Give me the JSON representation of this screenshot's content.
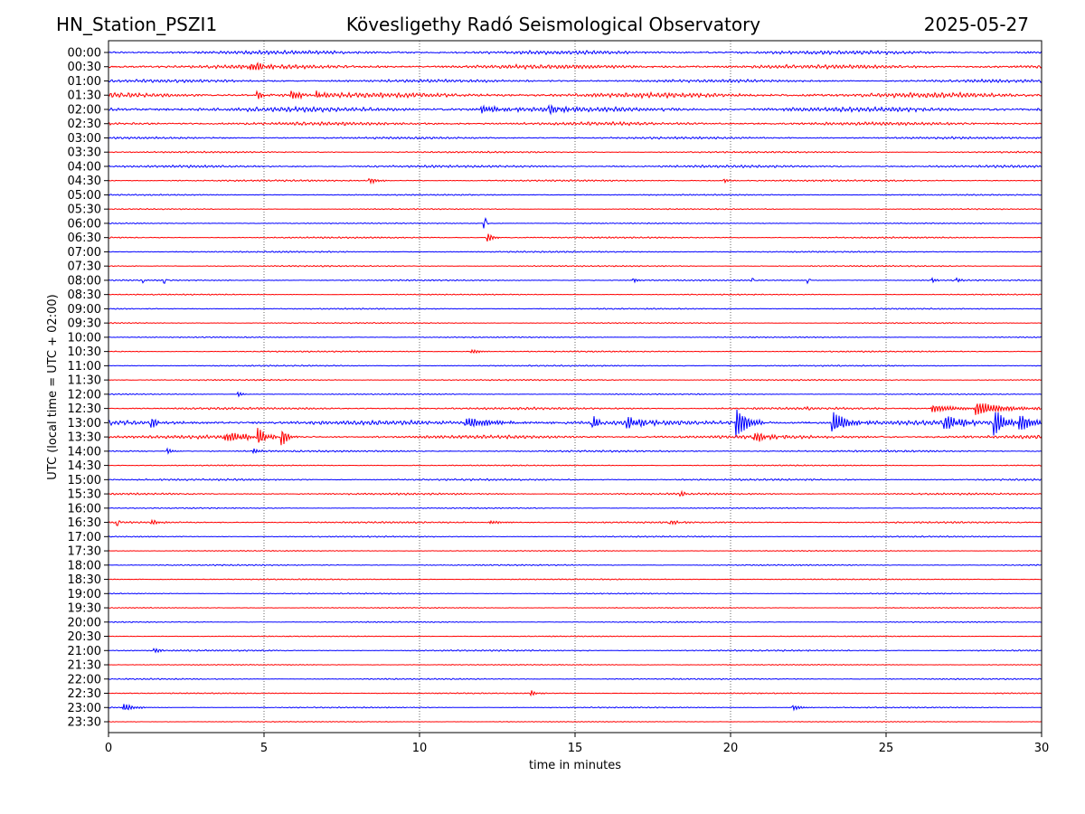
{
  "chart_data": {
    "type": "line",
    "title_left": "HN_Station_PSZI1",
    "title": "Kövesligethy Radó Seismological Observatory",
    "title_right": "2025-05-27",
    "xlabel": "time in minutes",
    "ylabel": "UTC (local time = UTC + 02:00)",
    "xlim": [
      0,
      30
    ],
    "xticks": [
      0,
      5,
      10,
      15,
      20,
      25,
      30
    ],
    "grid": "vertical dotted at x ticks",
    "colors": [
      "#0000ff",
      "#ff0000"
    ],
    "rows": [
      "00:00",
      "00:30",
      "01:00",
      "01:30",
      "02:00",
      "02:30",
      "03:00",
      "03:30",
      "04:00",
      "04:30",
      "05:00",
      "05:30",
      "06:00",
      "06:30",
      "07:00",
      "07:30",
      "08:00",
      "08:30",
      "09:00",
      "09:30",
      "10:00",
      "10:30",
      "11:00",
      "11:30",
      "12:00",
      "12:30",
      "13:00",
      "13:30",
      "14:00",
      "14:30",
      "15:00",
      "15:30",
      "16:00",
      "16:30",
      "17:00",
      "17:30",
      "18:00",
      "18:30",
      "19:00",
      "19:30",
      "20:00",
      "20:30",
      "21:00",
      "21:30",
      "22:00",
      "22:30",
      "23:00",
      "23:30"
    ],
    "noise_level": [
      2,
      2.2,
      1.6,
      2.6,
      2.6,
      1.8,
      1.2,
      0.9,
      1.3,
      0.9,
      0.7,
      0.6,
      0.6,
      0.8,
      0.8,
      0.7,
      0.7,
      0.6,
      0.7,
      0.6,
      0.6,
      0.7,
      0.7,
      0.7,
      0.6,
      1.2,
      2.4,
      1.8,
      1,
      0.6,
      1,
      1,
      0.6,
      0.9,
      0.7,
      0.5,
      0.7,
      0.6,
      0.6,
      0.5,
      0.6,
      0.5,
      0.8,
      0.5,
      0.7,
      0.6,
      0.6,
      0.4
    ],
    "events": [
      {
        "row": 1,
        "minute": 4.6,
        "amplitude": 5,
        "duration": 0.8
      },
      {
        "row": 3,
        "minute": 4.8,
        "amplitude": 5,
        "duration": 0.3
      },
      {
        "row": 3,
        "minute": 5.9,
        "amplitude": 6,
        "duration": 0.4
      },
      {
        "row": 3,
        "minute": 6.7,
        "amplitude": 5,
        "duration": 0.3
      },
      {
        "row": 4,
        "minute": 12,
        "amplitude": 4,
        "duration": 1.2
      },
      {
        "row": 4,
        "minute": 14.2,
        "amplitude": 4,
        "duration": 0.8
      },
      {
        "row": 9,
        "minute": 8.4,
        "amplitude": 3,
        "duration": 0.5
      },
      {
        "row": 9,
        "minute": 19.8,
        "amplitude": 2,
        "duration": 0.3
      },
      {
        "row": 12,
        "minute": 12.1,
        "amplitude": 8,
        "duration": 0.08
      },
      {
        "row": 13,
        "minute": 12.2,
        "amplitude": 5,
        "duration": 0.3
      },
      {
        "row": 16,
        "minute": 1.1,
        "amplitude": 3,
        "duration": 0.08
      },
      {
        "row": 16,
        "minute": 1.8,
        "amplitude": 3,
        "duration": 0.08
      },
      {
        "row": 16,
        "minute": 16.9,
        "amplitude": 3,
        "duration": 0.15
      },
      {
        "row": 16,
        "minute": 20.7,
        "amplitude": 3,
        "duration": 0.08
      },
      {
        "row": 16,
        "minute": 22.5,
        "amplitude": 3,
        "duration": 0.08
      },
      {
        "row": 16,
        "minute": 26.5,
        "amplitude": 3,
        "duration": 0.15
      },
      {
        "row": 16,
        "minute": 27.3,
        "amplitude": 3,
        "duration": 0.15
      },
      {
        "row": 21,
        "minute": 11.7,
        "amplitude": 2,
        "duration": 0.6
      },
      {
        "row": 24,
        "minute": 4.2,
        "amplitude": 2.5,
        "duration": 0.2
      },
      {
        "row": 25,
        "minute": 22.5,
        "amplitude": 2,
        "duration": 0.08
      },
      {
        "row": 25,
        "minute": 26.5,
        "amplitude": 4,
        "duration": 1.5
      },
      {
        "row": 25,
        "minute": 27.9,
        "amplitude": 8,
        "duration": 1.5
      },
      {
        "row": 26,
        "minute": 1.4,
        "amplitude": 5,
        "duration": 0.4
      },
      {
        "row": 26,
        "minute": 11.5,
        "amplitude": 5,
        "duration": 2
      },
      {
        "row": 26,
        "minute": 15.6,
        "amplitude": 9,
        "duration": 0.2
      },
      {
        "row": 26,
        "minute": 16.7,
        "amplitude": 6,
        "duration": 1
      },
      {
        "row": 26,
        "minute": 20.2,
        "amplitude": 18,
        "duration": 0.6
      },
      {
        "row": 26,
        "minute": 23.3,
        "amplitude": 12,
        "duration": 0.8
      },
      {
        "row": 26,
        "minute": 26.9,
        "amplitude": 8,
        "duration": 1
      },
      {
        "row": 26,
        "minute": 28.5,
        "amplitude": 16,
        "duration": 0.5
      },
      {
        "row": 26,
        "minute": 29.3,
        "amplitude": 10,
        "duration": 0.7
      },
      {
        "row": 27,
        "minute": 3.8,
        "amplitude": 5,
        "duration": 1.5
      },
      {
        "row": 27,
        "minute": 4.8,
        "amplitude": 9,
        "duration": 0.4
      },
      {
        "row": 27,
        "minute": 5.6,
        "amplitude": 9,
        "duration": 0.3
      },
      {
        "row": 27,
        "minute": 20.8,
        "amplitude": 5,
        "duration": 0.8
      },
      {
        "row": 28,
        "minute": 1.9,
        "amplitude": 3,
        "duration": 0.3
      },
      {
        "row": 28,
        "minute": 4.7,
        "amplitude": 3,
        "duration": 0.3
      },
      {
        "row": 31,
        "minute": 18.4,
        "amplitude": 3,
        "duration": 0.2
      },
      {
        "row": 33,
        "minute": 0.3,
        "amplitude": 4,
        "duration": 0.08
      },
      {
        "row": 33,
        "minute": 1.4,
        "amplitude": 2,
        "duration": 0.6
      },
      {
        "row": 33,
        "minute": 12.3,
        "amplitude": 2,
        "duration": 0.6
      },
      {
        "row": 33,
        "minute": 18.1,
        "amplitude": 2,
        "duration": 0.5
      },
      {
        "row": 42,
        "minute": 1.5,
        "amplitude": 2.5,
        "duration": 0.3
      },
      {
        "row": 45,
        "minute": 13.6,
        "amplitude": 3,
        "duration": 0.3
      },
      {
        "row": 46,
        "minute": 0.5,
        "amplitude": 4,
        "duration": 0.6
      },
      {
        "row": 46,
        "minute": 22,
        "amplitude": 3,
        "duration": 0.5
      }
    ]
  }
}
